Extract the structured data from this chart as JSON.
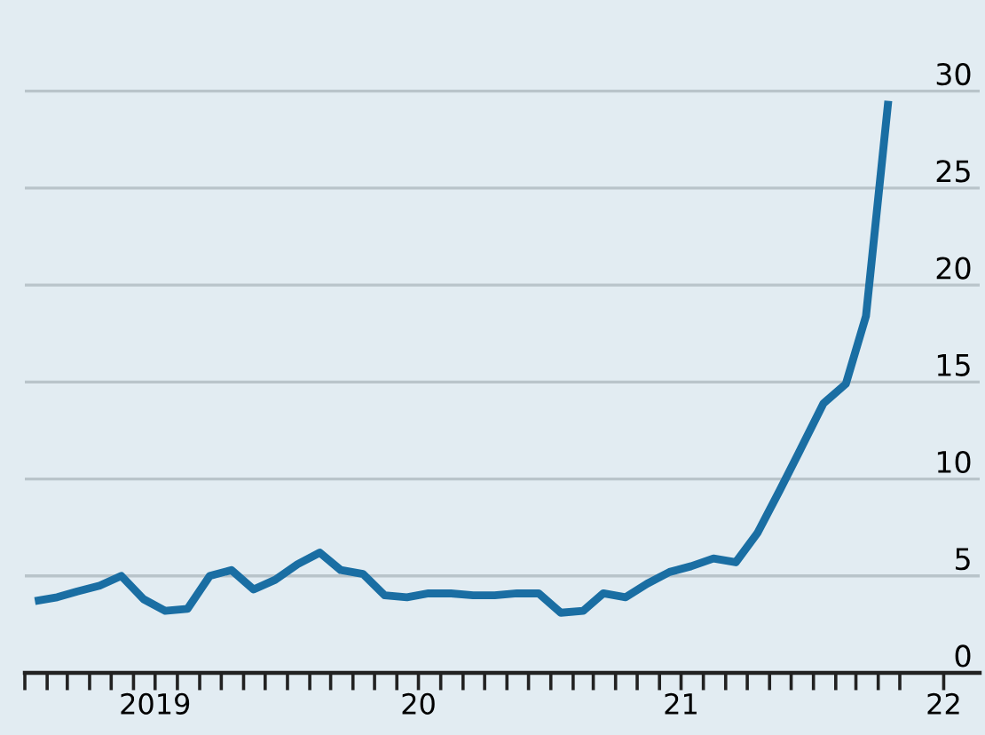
{
  "chart_data": {
    "type": "line",
    "x": [
      "2019-01-15",
      "2019-02-15",
      "2019-03-15",
      "2019-04-15",
      "2019-05-15",
      "2019-06-15",
      "2019-07-15",
      "2019-08-15",
      "2019-09-15",
      "2019-10-15",
      "2019-11-15",
      "2019-12-15",
      "2020-01-15",
      "2020-02-15",
      "2020-03-15",
      "2020-04-15",
      "2020-05-15",
      "2020-06-15",
      "2020-07-15",
      "2020-08-15",
      "2020-09-15",
      "2020-10-15",
      "2020-11-15",
      "2020-12-15",
      "2021-01-15",
      "2021-02-15",
      "2021-03-15",
      "2021-04-15",
      "2021-05-15",
      "2021-06-15",
      "2021-07-15",
      "2021-08-15",
      "2021-09-15",
      "2021-10-15",
      "2021-11-15",
      "2021-12-15",
      "2022-01-15",
      "2022-02-15",
      "2022-03-15",
      "2022-04-15"
    ],
    "series": [
      {
        "color": "#1a6ea3",
        "values": [
          3.7,
          3.9,
          4.2,
          4.5,
          5.0,
          3.8,
          3.2,
          3.3,
          5.0,
          5.3,
          4.3,
          4.8,
          5.6,
          6.2,
          5.3,
          5.1,
          4.0,
          3.9,
          4.1,
          4.1,
          4.0,
          4.0,
          4.1,
          4.1,
          3.1,
          3.2,
          4.1,
          3.9,
          4.6,
          5.2,
          5.5,
          5.9,
          5.7,
          7.2,
          9.4,
          11.6,
          13.9,
          14.9,
          18.4,
          29.5
        ]
      }
    ],
    "xlim": [
      "2019-01-01",
      "2022-08-20"
    ],
    "xticks": [
      {
        "value": "2019-01-01",
        "label": null
      },
      {
        "value": "2019-02-01",
        "label": null
      },
      {
        "value": "2019-03-01",
        "label": null
      },
      {
        "value": "2019-04-01",
        "label": null
      },
      {
        "value": "2019-05-01",
        "label": null
      },
      {
        "value": "2019-06-01",
        "label": null
      },
      {
        "value": "2019-07-01",
        "label": "2019"
      },
      {
        "value": "2019-08-01",
        "label": null
      },
      {
        "value": "2019-09-01",
        "label": null
      },
      {
        "value": "2019-10-01",
        "label": null
      },
      {
        "value": "2019-11-01",
        "label": null
      },
      {
        "value": "2019-12-01",
        "label": null
      },
      {
        "value": "2020-01-01",
        "label": null
      },
      {
        "value": "2020-02-01",
        "label": null
      },
      {
        "value": "2020-03-01",
        "label": null
      },
      {
        "value": "2020-04-01",
        "label": null
      },
      {
        "value": "2020-05-01",
        "label": null
      },
      {
        "value": "2020-06-01",
        "label": null
      },
      {
        "value": "2020-07-01",
        "label": "20"
      },
      {
        "value": "2020-08-01",
        "label": null
      },
      {
        "value": "2020-09-01",
        "label": null
      },
      {
        "value": "2020-10-01",
        "label": null
      },
      {
        "value": "2020-11-01",
        "label": null
      },
      {
        "value": "2020-12-01",
        "label": null
      },
      {
        "value": "2021-01-01",
        "label": null
      },
      {
        "value": "2021-02-01",
        "label": null
      },
      {
        "value": "2021-03-01",
        "label": null
      },
      {
        "value": "2021-04-01",
        "label": null
      },
      {
        "value": "2021-05-01",
        "label": null
      },
      {
        "value": "2021-06-01",
        "label": null
      },
      {
        "value": "2021-07-01",
        "label": "21"
      },
      {
        "value": "2021-08-01",
        "label": null
      },
      {
        "value": "2021-09-01",
        "label": null
      },
      {
        "value": "2021-10-01",
        "label": null
      },
      {
        "value": "2021-11-01",
        "label": null
      },
      {
        "value": "2021-12-01",
        "label": null
      },
      {
        "value": "2022-01-01",
        "label": null
      },
      {
        "value": "2022-02-01",
        "label": null
      },
      {
        "value": "2022-03-01",
        "label": null
      },
      {
        "value": "2022-04-01",
        "label": null
      },
      {
        "value": "2022-05-01",
        "label": null
      },
      {
        "value": "2022-07-01",
        "label": "22"
      }
    ],
    "ylim": [
      0,
      34.7
    ],
    "yticks": [
      0,
      5,
      10,
      15,
      20,
      25,
      30
    ],
    "grid": "y",
    "legend": false,
    "marker": "none",
    "line_style": "solid"
  }
}
